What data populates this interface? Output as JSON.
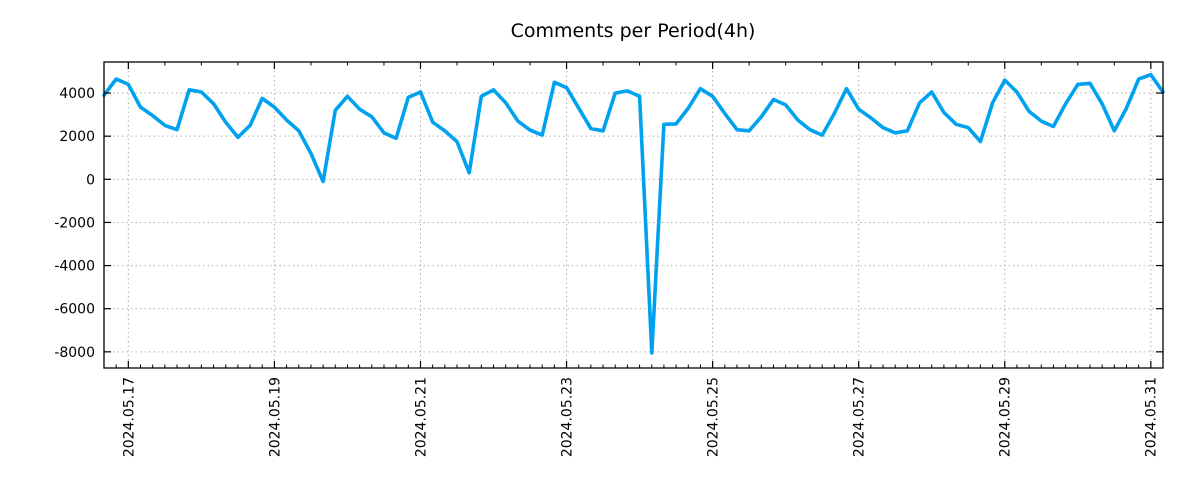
{
  "page": {
    "background": "#ffffff"
  },
  "chart_data": {
    "type": "line",
    "title": "Comments per Period(4h)",
    "xlabel": "",
    "ylabel": "",
    "legend": "none",
    "grid": "dotted",
    "grid_color": "#b0b0b0",
    "axis_color": "#000000",
    "line_color": "#00a2f0",
    "x_period_hours": 4,
    "ylim": [
      -8750,
      5440
    ],
    "y_ticks": [
      4000,
      2000,
      0,
      -2000,
      -4000,
      -6000,
      -8000
    ],
    "x_major_tick_labels": [
      "2024.05.17",
      "2024.05.19",
      "2024.05.21",
      "2024.05.23",
      "2024.05.25",
      "2024.05.27",
      "2024.05.29",
      "2024.05.31"
    ],
    "series": [
      {
        "name": "comments_per_4h",
        "color": "#00a2f0",
        "x": [
          "2024-05-16 16:00",
          "2024-05-16 20:00",
          "2024-05-17 00:00",
          "2024-05-17 04:00",
          "2024-05-17 08:00",
          "2024-05-17 12:00",
          "2024-05-17 16:00",
          "2024-05-17 20:00",
          "2024-05-18 00:00",
          "2024-05-18 04:00",
          "2024-05-18 08:00",
          "2024-05-18 12:00",
          "2024-05-18 16:00",
          "2024-05-18 20:00",
          "2024-05-19 00:00",
          "2024-05-19 04:00",
          "2024-05-19 08:00",
          "2024-05-19 12:00",
          "2024-05-19 16:00",
          "2024-05-19 20:00",
          "2024-05-20 00:00",
          "2024-05-20 04:00",
          "2024-05-20 08:00",
          "2024-05-20 12:00",
          "2024-05-20 16:00",
          "2024-05-20 20:00",
          "2024-05-21 00:00",
          "2024-05-21 04:00",
          "2024-05-21 08:00",
          "2024-05-21 12:00",
          "2024-05-21 16:00",
          "2024-05-21 20:00",
          "2024-05-22 00:00",
          "2024-05-22 04:00",
          "2024-05-22 08:00",
          "2024-05-22 12:00",
          "2024-05-22 16:00",
          "2024-05-22 20:00",
          "2024-05-23 00:00",
          "2024-05-23 04:00",
          "2024-05-23 08:00",
          "2024-05-23 12:00",
          "2024-05-23 16:00",
          "2024-05-23 20:00",
          "2024-05-24 00:00",
          "2024-05-24 04:00",
          "2024-05-24 08:00",
          "2024-05-24 12:00",
          "2024-05-24 16:00",
          "2024-05-24 20:00",
          "2024-05-25 00:00",
          "2024-05-25 04:00",
          "2024-05-25 08:00",
          "2024-05-25 12:00",
          "2024-05-25 16:00",
          "2024-05-25 20:00",
          "2024-05-26 00:00",
          "2024-05-26 04:00",
          "2024-05-26 08:00",
          "2024-05-26 12:00",
          "2024-05-26 16:00",
          "2024-05-26 20:00",
          "2024-05-27 00:00",
          "2024-05-27 04:00",
          "2024-05-27 08:00",
          "2024-05-27 12:00",
          "2024-05-27 16:00",
          "2024-05-27 20:00",
          "2024-05-28 00:00",
          "2024-05-28 04:00",
          "2024-05-28 08:00",
          "2024-05-28 12:00",
          "2024-05-28 16:00",
          "2024-05-28 20:00",
          "2024-05-29 00:00",
          "2024-05-29 04:00",
          "2024-05-29 08:00",
          "2024-05-29 12:00",
          "2024-05-29 16:00",
          "2024-05-29 20:00",
          "2024-05-30 00:00",
          "2024-05-30 04:00",
          "2024-05-30 08:00",
          "2024-05-30 12:00",
          "2024-05-30 16:00",
          "2024-05-30 20:00",
          "2024-05-31 00:00",
          "2024-05-31 04:00"
        ],
        "values": [
          3900,
          4650,
          4400,
          3350,
          2950,
          2500,
          2300,
          4150,
          4050,
          3500,
          2650,
          1950,
          2500,
          3750,
          3350,
          2750,
          2250,
          1200,
          -100,
          3200,
          3850,
          3250,
          2900,
          2150,
          1900,
          3800,
          4050,
          2650,
          2250,
          1750,
          300,
          3850,
          4150,
          3550,
          2700,
          2280,
          2050,
          4500,
          4250,
          3300,
          2350,
          2250,
          4000,
          4100,
          3850,
          -8050,
          2550,
          2570,
          3300,
          4200,
          3850,
          3050,
          2300,
          2250,
          2900,
          3700,
          3450,
          2750,
          2300,
          2050,
          3050,
          4200,
          3250,
          2850,
          2400,
          2150,
          2250,
          3550,
          4050,
          3100,
          2550,
          2400,
          1750,
          3550,
          4600,
          4050,
          3150,
          2700,
          2450,
          3500,
          4400,
          4450,
          3500,
          2250,
          3300,
          4650,
          4850,
          4050
        ]
      }
    ]
  }
}
